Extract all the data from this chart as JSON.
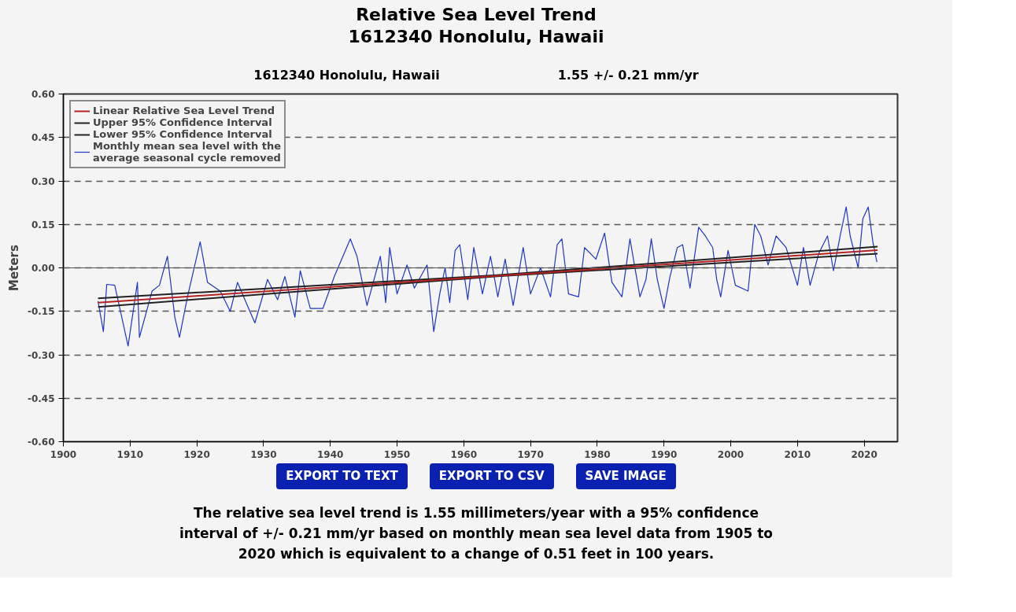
{
  "chart_data": {
    "type": "line",
    "title": "Relative Sea Level Trend\n1612340 Honolulu, Hawaii",
    "subtitle": "1612340 Honolulu, Hawaii",
    "ylabel": "Meters",
    "xlim": [
      1900,
      2025
    ],
    "xticks": [
      1900,
      1910,
      1920,
      1930,
      1940,
      1950,
      1960,
      1970,
      1980,
      1990,
      2000,
      2010,
      2020
    ],
    "ylim": [
      -0.6,
      0.6
    ],
    "yticks": [
      {
        "value": -0.6,
        "label": "-0.60"
      },
      {
        "value": -0.45,
        "label": "-0.45"
      },
      {
        "value": -0.3,
        "label": "-0.30"
      },
      {
        "value": -0.15,
        "label": "-0.15"
      },
      {
        "value": 0,
        "label": "0.00"
      },
      {
        "value": 0.15,
        "label": "0.15"
      },
      {
        "value": 0.3,
        "label": "0.30"
      },
      {
        "value": 0.45,
        "label": "0.45"
      },
      {
        "value": 0.6,
        "label": "0.60"
      }
    ],
    "grid": "y",
    "legend": "top left",
    "marker": "none",
    "line_style": "solid",
    "ref_lines": [
      {
        "axis": "y",
        "value": 0,
        "color": "#555555"
      }
    ],
    "series": [
      {
        "name": "Linear Relative Sea Level Trend",
        "color": "#b22222",
        "x": [
          1905.2,
          2022
        ],
        "values": [
          -0.12,
          0.061
        ]
      },
      {
        "name": "Upper 95% Confidence Interval",
        "color": "#222222",
        "x": [
          1905.2,
          1965,
          2022
        ],
        "values": [
          -0.105,
          -0.025,
          0.073
        ]
      },
      {
        "name": "Lower 95% Confidence Interval",
        "color": "#222222",
        "x": [
          1905.2,
          1965,
          2022
        ],
        "values": [
          -0.135,
          -0.029,
          0.049
        ]
      },
      {
        "name": "Monthly mean sea level with the\naverage seasonal cycle removed",
        "color": "#1f35c8",
        "x": [
          1905.2,
          1906,
          1906.5,
          1907.7,
          1909.7,
          1911.1,
          1911.4,
          1913.3,
          1914.4,
          1915.6,
          1916.7,
          1917.4,
          1918.6,
          1920.5,
          1921.6,
          1923.5,
          1925,
          1926.1,
          1927.2,
          1928.7,
          1930.6,
          1932.1,
          1933.2,
          1934.7,
          1935.5,
          1937,
          1938.9,
          1940.6,
          1943.0,
          1944.0,
          1945.5,
          1947.5,
          1948.3,
          1948.9,
          1950,
          1951.5,
          1952.6,
          1954.5,
          1955.5,
          1956.4,
          1957.2,
          1957.9,
          1958.7,
          1959.4,
          1960.6,
          1961.5,
          1962.8,
          1964,
          1965.1,
          1966.2,
          1967.4,
          1968.9,
          1970,
          1971.5,
          1973,
          1974,
          1974.7,
          1975.7,
          1977.2,
          1978.1,
          1979.8,
          1981.1,
          1982.2,
          1983.7,
          1984.9,
          1986.4,
          1987.3,
          1988.1,
          1989,
          1990,
          1990.9,
          1992.0,
          1992.8,
          1993.9,
          1995.2,
          1996.2,
          1997.3,
          1997.9,
          1998.5,
          1999.6,
          2000.7,
          2002.6,
          2003.6,
          2004.5,
          2005.6,
          2006.8,
          2008.3,
          2010,
          2010.9,
          2011.9,
          2013.2,
          2014.5,
          2015.4,
          2016.4,
          2017.3,
          2017.9,
          2019.1,
          2019.8,
          2020.6,
          2021.3,
          2021.9
        ],
        "values": [
          -0.115,
          -0.22,
          -0.057,
          -0.06,
          -0.27,
          -0.05,
          -0.24,
          -0.08,
          -0.06,
          0.04,
          -0.17,
          -0.24,
          -0.1,
          0.09,
          -0.05,
          -0.08,
          -0.15,
          -0.05,
          -0.11,
          -0.19,
          -0.04,
          -0.11,
          -0.03,
          -0.17,
          -0.01,
          -0.14,
          -0.14,
          -0.03,
          0.1,
          0.04,
          -0.13,
          0.04,
          -0.12,
          0.07,
          -0.09,
          0.01,
          -0.07,
          0.01,
          -0.22,
          -0.09,
          0.0,
          -0.12,
          0.06,
          0.08,
          -0.11,
          0.07,
          -0.09,
          0.04,
          -0.1,
          0.03,
          -0.13,
          0.07,
          -0.09,
          0.0,
          -0.1,
          0.08,
          0.1,
          -0.09,
          -0.1,
          0.07,
          0.03,
          0.12,
          -0.05,
          -0.1,
          0.1,
          -0.1,
          -0.04,
          0.1,
          -0.04,
          -0.14,
          -0.03,
          0.07,
          0.08,
          -0.07,
          0.14,
          0.11,
          0.07,
          -0.04,
          -0.1,
          0.06,
          -0.06,
          -0.08,
          0.15,
          0.11,
          0.01,
          0.11,
          0.07,
          -0.06,
          0.07,
          -0.06,
          0.05,
          0.11,
          -0.01,
          0.11,
          0.21,
          0.11,
          0.0,
          0.17,
          0.21,
          0.09,
          0.02
        ]
      }
    ],
    "annotations": [
      "1.55 +/-  0.21 mm/yr",
      "EXPORT TO TEXT",
      "EXPORT TO CSV",
      "SAVE IMAGE",
      "The relative sea level trend is 1.55 millimeters/year with a 95% confidence interval of +/- 0.21 mm/yr based on monthly mean sea level data from 1905 to 2020 which is equivalent to a change of 0.51 feet in 100 years."
    ]
  }
}
